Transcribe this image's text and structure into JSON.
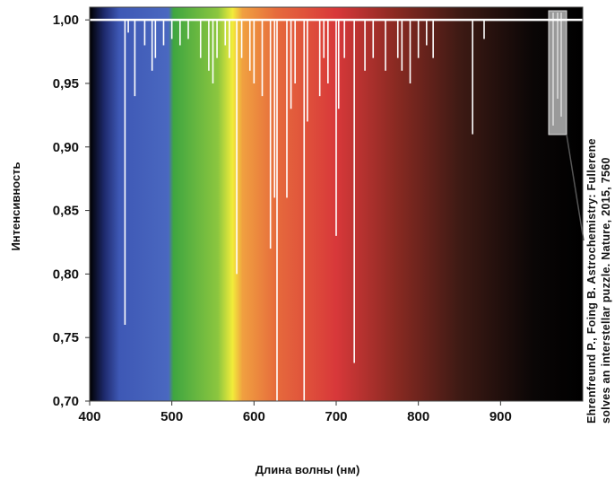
{
  "chart_data": {
    "type": "spike",
    "x_label": "Длина волны (нм)",
    "y_label": "Интенсивность",
    "annotation": [
      "Ehrenfreund P., Foing B. Astrochemistry: Fullerene",
      "solves an interstellar puzzle. Nature, 2015, 7560"
    ],
    "baseline": 1.0,
    "color": "#ffffff",
    "x": [
      443,
      447,
      455,
      467,
      476,
      480,
      490,
      500,
      510,
      520,
      535,
      545,
      550,
      555,
      565,
      570,
      579,
      585,
      595,
      600,
      610,
      620,
      625,
      628,
      640,
      645,
      650,
      661,
      665,
      680,
      685,
      690,
      700,
      703,
      710,
      722,
      735,
      745,
      760,
      775,
      780,
      790,
      800,
      810,
      818,
      866,
      880
    ],
    "values": [
      0.76,
      0.99,
      0.94,
      0.98,
      0.96,
      0.97,
      0.98,
      0.985,
      0.98,
      0.985,
      0.97,
      0.96,
      0.95,
      0.97,
      0.98,
      0.97,
      0.8,
      0.97,
      0.96,
      0.95,
      0.94,
      0.82,
      0.86,
      0.7,
      0.86,
      0.93,
      0.95,
      0.7,
      0.92,
      0.94,
      0.97,
      0.95,
      0.83,
      0.93,
      0.97,
      0.73,
      0.96,
      0.97,
      0.96,
      0.97,
      0.96,
      0.95,
      0.97,
      0.98,
      0.97,
      0.91,
      0.985
    ],
    "xlim": [
      400,
      1000
    ],
    "ylim": [
      0.7,
      1.01
    ],
    "xticks": [
      400,
      500,
      600,
      700,
      800,
      900
    ],
    "yticks": [
      {
        "value": 0.7,
        "label": "0,70"
      },
      {
        "value": 0.75,
        "label": "0,75"
      },
      {
        "value": 0.8,
        "label": "0,80"
      },
      {
        "value": 0.85,
        "label": "0,85"
      },
      {
        "value": 0.9,
        "label": "0,90"
      },
      {
        "value": 0.95,
        "label": "0,95"
      },
      {
        "value": 1.0,
        "label": "1,00"
      }
    ]
  }
}
